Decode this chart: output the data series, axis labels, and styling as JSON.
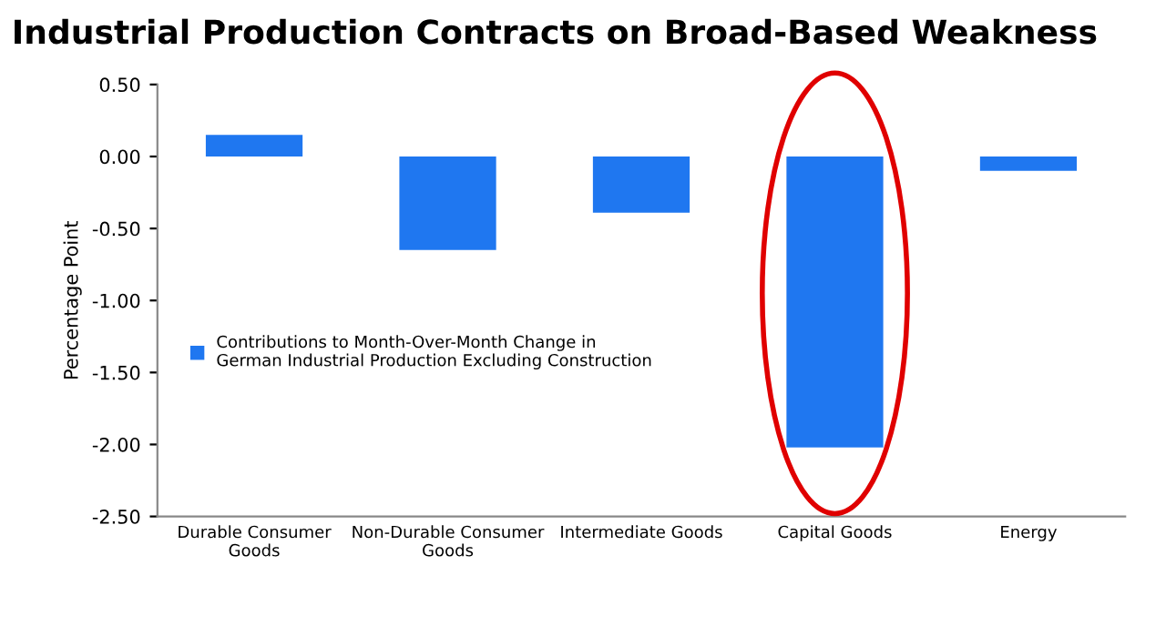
{
  "chart_data": {
    "type": "bar",
    "title": "Industrial Production Contracts on Broad-Based Weakness",
    "ylabel": "Percentage Point",
    "categories": [
      "Durable Consumer\nGoods",
      "Non-Durable Consumer\nGoods",
      "Intermediate Goods",
      "Capital Goods",
      "Energy"
    ],
    "series": [
      {
        "name": "Contributions to Month-Over-Month Change in\nGerman Industrial Production Excluding Construction",
        "color": "#1f77f0",
        "values": [
          0.15,
          -0.65,
          -0.39,
          -2.02,
          -0.1
        ]
      }
    ],
    "ylim": [
      -2.5,
      0.5
    ],
    "yticks": [
      {
        "value": 0.5,
        "label": "0.50"
      },
      {
        "value": 0,
        "label": "0.00"
      },
      {
        "value": -0.5,
        "label": "-0.50"
      },
      {
        "value": -1,
        "label": "-1.00"
      },
      {
        "value": -1.5,
        "label": "-1.50"
      },
      {
        "value": -2,
        "label": "-2.00"
      },
      {
        "value": -2.5,
        "label": "-2.50"
      }
    ],
    "legend": "left",
    "grid": false
  }
}
